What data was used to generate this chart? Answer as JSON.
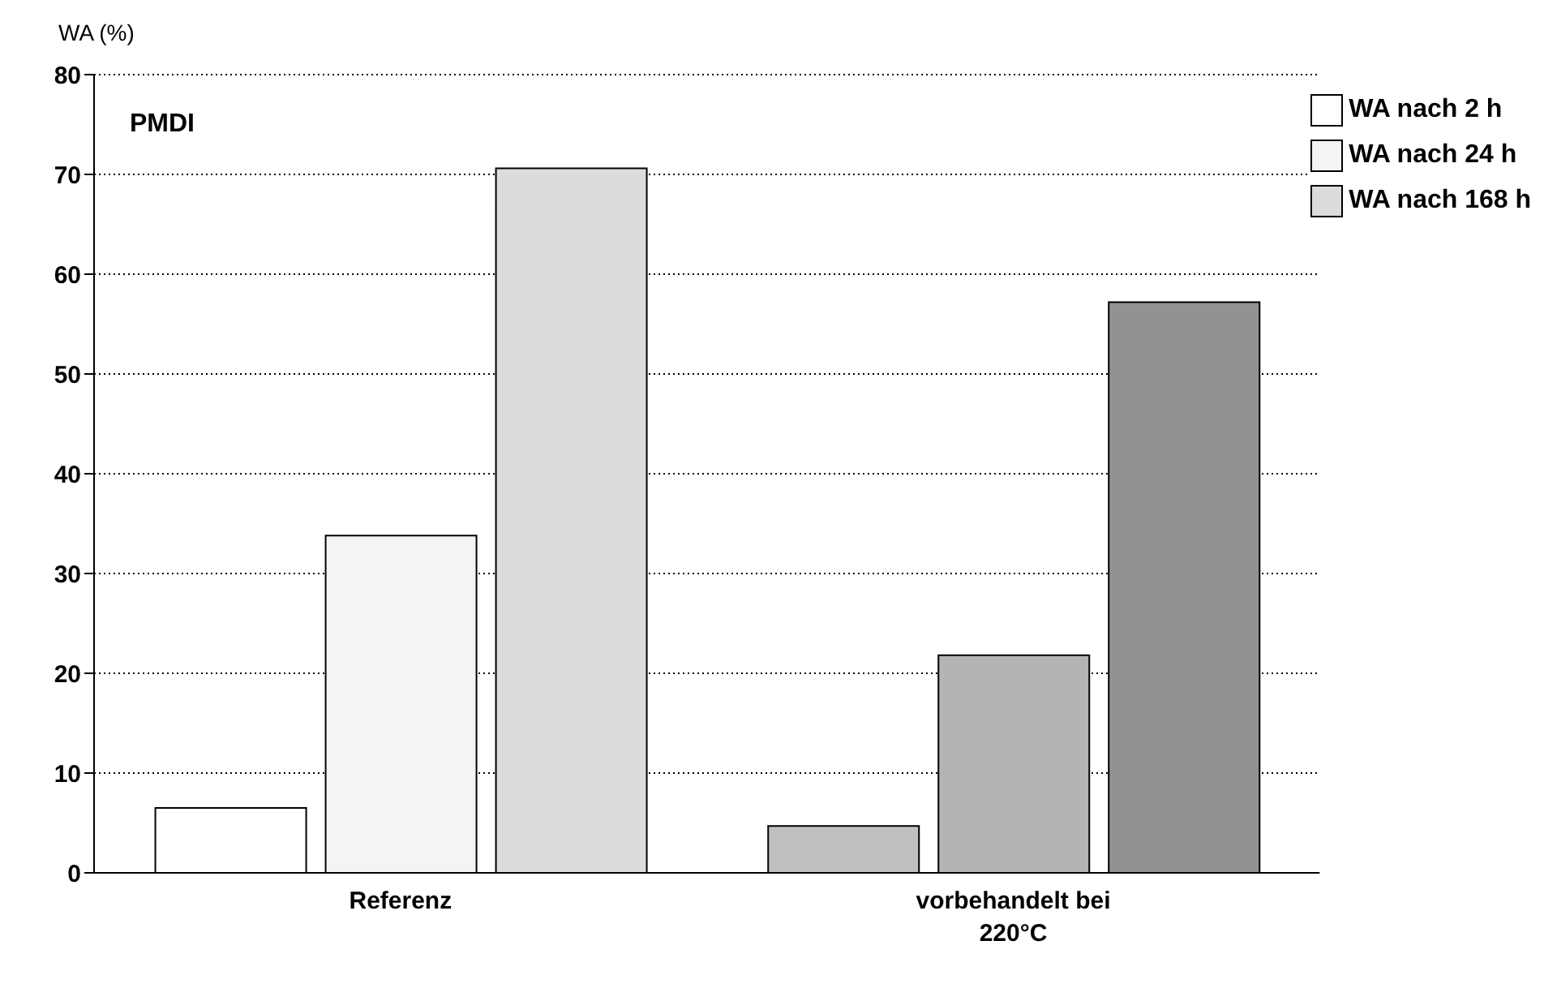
{
  "chart_data": {
    "type": "bar",
    "ylabel": "WA (%)",
    "annotations": [
      "PMDI"
    ],
    "categories": [
      "Referenz",
      "vorbehandelt bei 220°C"
    ],
    "series": [
      {
        "name": "WA nach 2 h",
        "colors": [
          "#ffffff",
          "#c0c0c0"
        ],
        "values": [
          6.5,
          4.7
        ]
      },
      {
        "name": "WA nach 24 h",
        "colors": [
          "#f4f4f4",
          "#b4b4b4"
        ],
        "values": [
          33.8,
          21.8
        ]
      },
      {
        "name": "WA nach 168 h",
        "colors": [
          "#dcdcdc",
          "#929292"
        ],
        "values": [
          70.6,
          57.2
        ]
      }
    ],
    "ylim": [
      0,
      80
    ],
    "yticks": [
      0,
      10,
      20,
      30,
      40,
      50,
      60,
      70,
      80
    ],
    "grid": "y",
    "legend": "top right"
  }
}
